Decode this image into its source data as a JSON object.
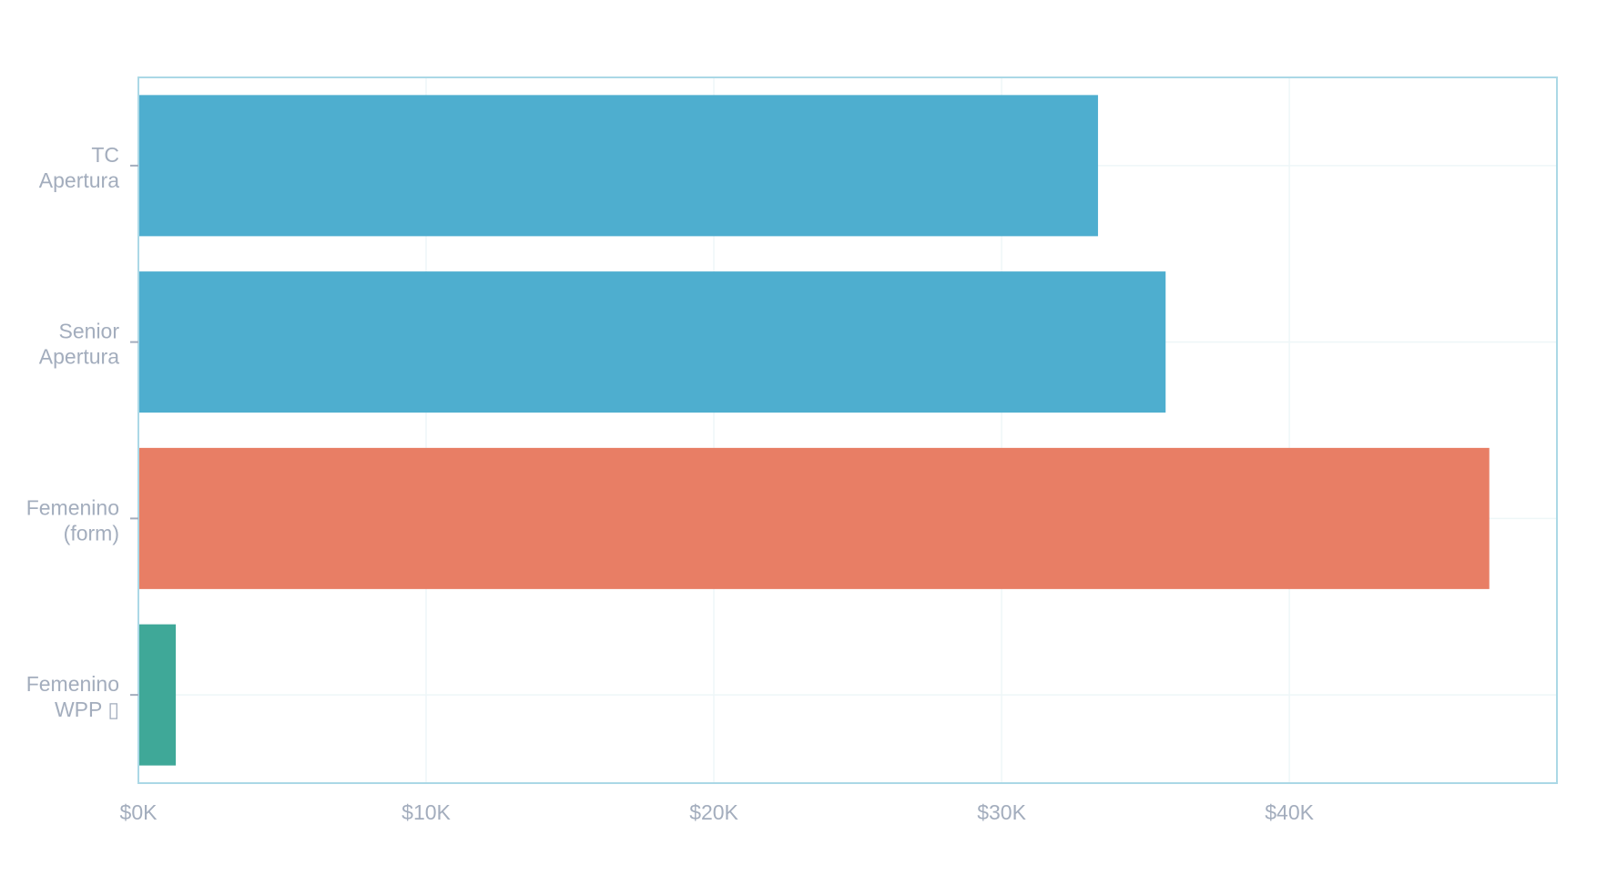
{
  "chart_data": {
    "type": "bar",
    "orientation": "horizontal",
    "title": "",
    "xlabel": "",
    "ylabel": "",
    "categories": [
      [
        "TC",
        "Apertura"
      ],
      [
        "Senior",
        "Apertura"
      ],
      [
        "Femenino",
        "(form)"
      ],
      [
        "Femenino",
        "WPP ▯"
      ]
    ],
    "values": [
      33350,
      35700,
      46950,
      1300
    ],
    "colors": [
      "#4eaecf",
      "#4eaecf",
      "#e87e65",
      "#3fa898"
    ],
    "xlim": [
      0,
      49300
    ],
    "xticks": [
      0,
      10000,
      20000,
      30000,
      40000
    ],
    "xtick_labels": [
      "$0K",
      "$10K",
      "$20K",
      "$30K",
      "$40K"
    ],
    "grid": true,
    "legend": "none"
  }
}
